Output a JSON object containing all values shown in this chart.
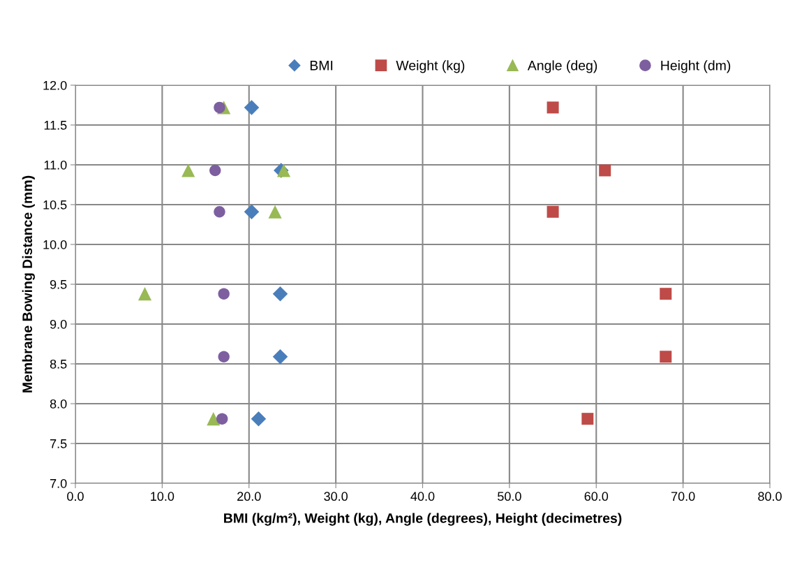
{
  "chart_data": {
    "type": "scatter",
    "xlabel": "BMI (kg/m²), Weight (kg), Angle (degrees), Height (decimetres)",
    "ylabel": "Membrane Bowing Distance (mm)",
    "series": [
      {
        "name": "BMI",
        "color": "#4a7ebb",
        "marker": "diamond",
        "x": [
          20.3,
          23.7,
          20.3,
          23.6,
          23.6,
          21.1
        ],
        "values": [
          11.72,
          10.93,
          10.41,
          9.38,
          8.59,
          7.81
        ]
      },
      {
        "name": "Weight (kg)",
        "color": "#be4b48",
        "marker": "square",
        "x": [
          55.0,
          61.0,
          55.0,
          68.0,
          68.0,
          59.0
        ],
        "values": [
          11.72,
          10.93,
          10.41,
          9.38,
          8.59,
          7.81
        ]
      },
      {
        "name": "Angle (deg)",
        "color": "#98b954",
        "marker": "triangle",
        "x": [
          17.1,
          13.0,
          24.0,
          23.0,
          8.0,
          15.9
        ],
        "values": [
          11.72,
          10.93,
          10.93,
          10.41,
          9.38,
          7.81
        ]
      },
      {
        "name": "Height (dm)",
        "color": "#7d5fa0",
        "marker": "circle",
        "x": [
          16.6,
          16.1,
          16.6,
          17.1,
          17.1,
          16.9
        ],
        "values": [
          11.72,
          10.93,
          10.41,
          9.38,
          8.59,
          7.81
        ]
      }
    ],
    "xlim": [
      0,
      80
    ],
    "xticks": [
      {
        "value": 0,
        "label": "0.0"
      },
      {
        "value": 10,
        "label": "10.0"
      },
      {
        "value": 20,
        "label": "20.0"
      },
      {
        "value": 30,
        "label": "30.0"
      },
      {
        "value": 40,
        "label": "40.0"
      },
      {
        "value": 50,
        "label": "50.0"
      },
      {
        "value": 60,
        "label": "60.0"
      },
      {
        "value": 70,
        "label": "70.0"
      },
      {
        "value": 80,
        "label": "80.0"
      }
    ],
    "ylim": [
      7,
      12
    ],
    "yticks": [
      {
        "value": 7,
        "label": "7.0"
      },
      {
        "value": 7.5,
        "label": "7.5"
      },
      {
        "value": 8,
        "label": "8.0"
      },
      {
        "value": 8.5,
        "label": "8.5"
      },
      {
        "value": 9,
        "label": "9.0"
      },
      {
        "value": 9.5,
        "label": "9.5"
      },
      {
        "value": 10,
        "label": "10.0"
      },
      {
        "value": 10.5,
        "label": "10.5"
      },
      {
        "value": 11,
        "label": "11.0"
      },
      {
        "value": 11.5,
        "label": "11.5"
      },
      {
        "value": 12,
        "label": "12.0"
      }
    ],
    "grid": true,
    "legend": "top"
  }
}
